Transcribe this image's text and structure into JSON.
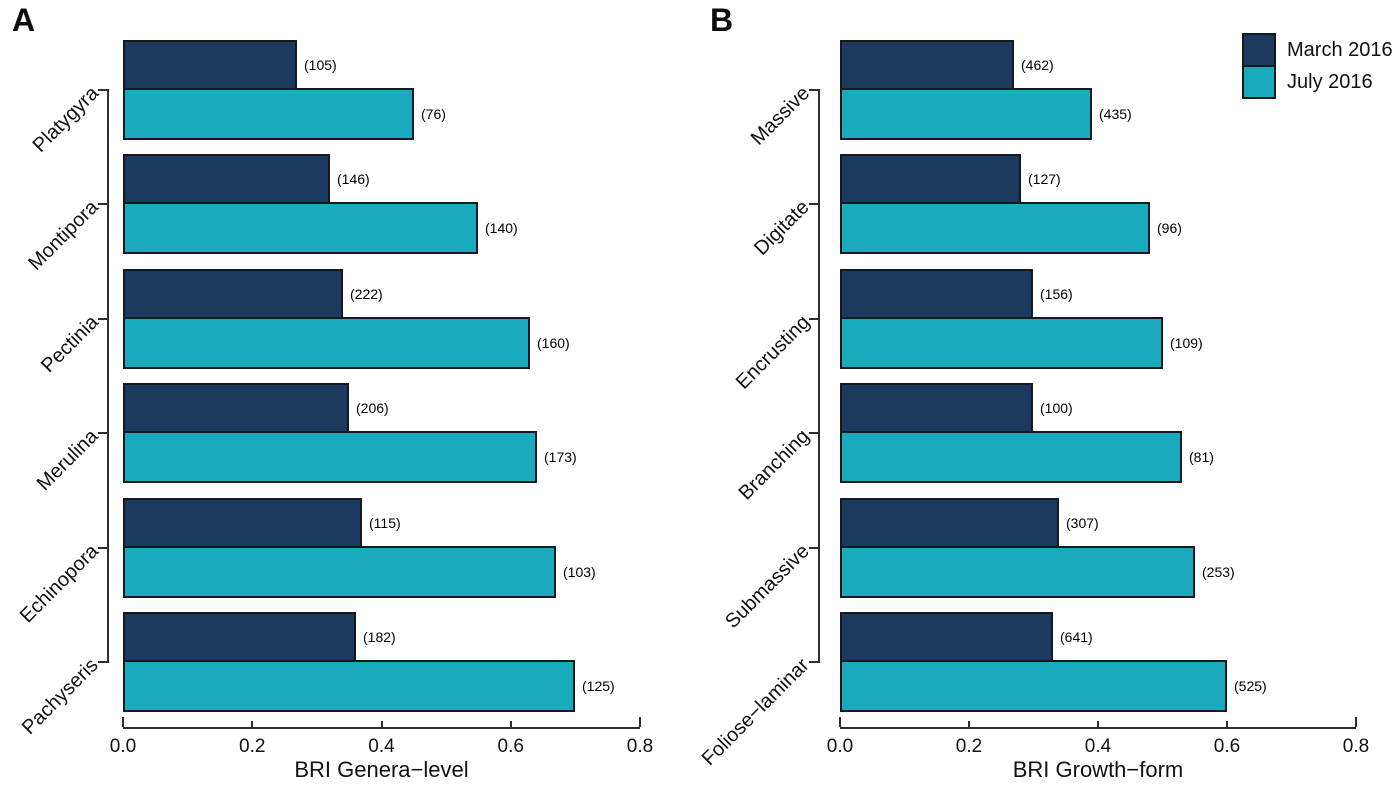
{
  "colors": {
    "march": "#1c3a5f",
    "july": "#19abbd",
    "bar_border": "#16191c",
    "axis": "#2e2e2e",
    "text": "#111111",
    "background": "#ffffff"
  },
  "chart_data": [
    {
      "type": "bar",
      "orientation": "horizontal",
      "panel_label": "A",
      "xlabel": "BRI Genera−level",
      "ylabel": "",
      "xlim": [
        0,
        0.8
      ],
      "xtick_labels": [
        "0.0",
        "0.2",
        "0.4",
        "0.6",
        "0.8"
      ],
      "grid": false,
      "legend": false,
      "categories": [
        "Platygyra",
        "Montipora",
        "Pectinia",
        "Merulina",
        "Echinopora",
        "Pachyseris"
      ],
      "series": [
        {
          "name": "March 2016",
          "color": "#1c3a5f",
          "values": [
            0.27,
            0.32,
            0.34,
            0.35,
            0.37,
            0.36
          ],
          "counts": [
            105,
            146,
            222,
            206,
            115,
            182
          ]
        },
        {
          "name": "July 2016",
          "color": "#19abbd",
          "values": [
            0.45,
            0.55,
            0.63,
            0.64,
            0.67,
            0.7
          ],
          "counts": [
            76,
            140,
            160,
            173,
            103,
            125
          ]
        }
      ]
    },
    {
      "type": "bar",
      "orientation": "horizontal",
      "panel_label": "B",
      "xlabel": "BRI Growth−form",
      "ylabel": "",
      "xlim": [
        0,
        0.8
      ],
      "xtick_labels": [
        "0.0",
        "0.2",
        "0.4",
        "0.6",
        "0.8"
      ],
      "grid": false,
      "legend": true,
      "legend_position": "top-right",
      "categories": [
        "Massive",
        "Digitate",
        "Encrusting",
        "Branching",
        "Submassive",
        "Foliose−laminar"
      ],
      "series": [
        {
          "name": "March 2016",
          "color": "#1c3a5f",
          "values": [
            0.27,
            0.28,
            0.3,
            0.3,
            0.34,
            0.33
          ],
          "counts": [
            462,
            127,
            156,
            100,
            307,
            641
          ]
        },
        {
          "name": "July 2016",
          "color": "#19abbd",
          "values": [
            0.39,
            0.48,
            0.5,
            0.53,
            0.55,
            0.6
          ],
          "counts": [
            435,
            96,
            109,
            81,
            253,
            525
          ]
        }
      ]
    }
  ]
}
